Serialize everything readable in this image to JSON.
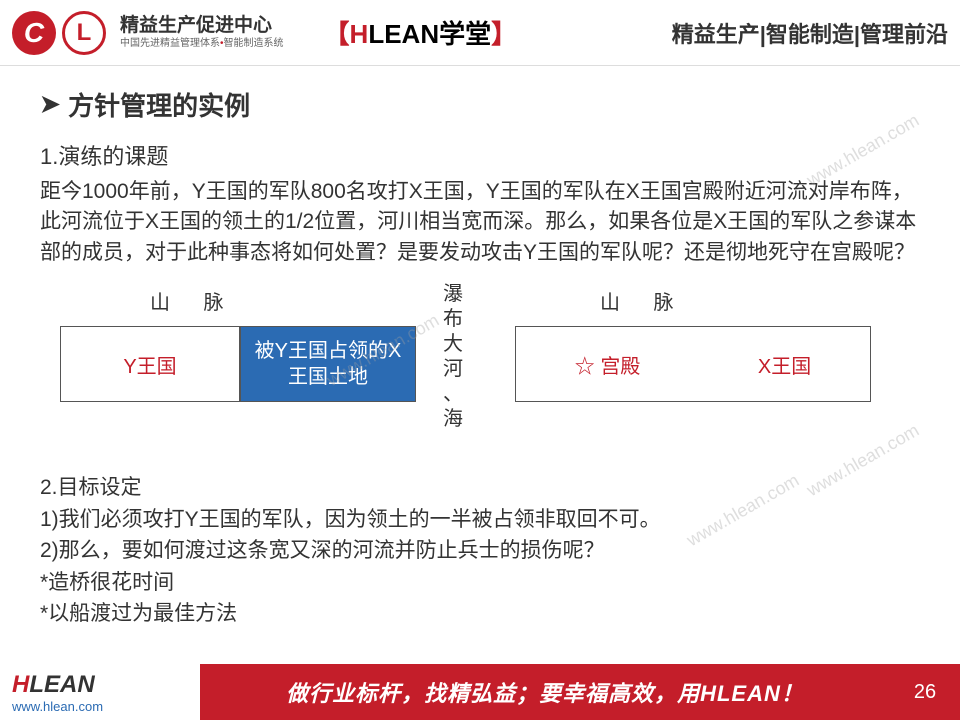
{
  "header": {
    "logo_c": "C",
    "logo_l": "L",
    "logo_main": "精益生产促进中心",
    "logo_sub_a": "中国先进精益管理体系",
    "logo_sub_b": "智能制造系统",
    "center_bracket_l": "【",
    "center_h": "H",
    "center_lean": "LEAN",
    "center_school": "学堂",
    "center_bracket_r": "】",
    "right": "精益生产|智能制造|管理前沿"
  },
  "title": {
    "arrow": "➤",
    "text": "方针管理的实例"
  },
  "section1": {
    "label": "1.演练的课题",
    "body": "距今1000年前，Y王国的军队800名攻打X王国，Y王国的军队在X王国宫殿附近河流对岸布阵，此河流位于X王国的领土的1/2位置，河川相当宽而深。那么，如果各位是X王国的军队之参谋本部的成员，对于此种事态将如何处置？是要发动攻击Y王国的军队呢？还是彻地死守在宫殿呢？"
  },
  "diagram": {
    "mountain": "山 脉",
    "center_vertical": "瀑布 大河 、海",
    "box_y": "Y王国",
    "box_occupied": "被Y王国占领的X王国土地",
    "palace": "☆ 宫殿",
    "box_x": "X王国",
    "colors": {
      "occupied_bg": "#2b6bb3",
      "accent_red": "#c41e2a",
      "border": "#555555"
    }
  },
  "section2": {
    "label": "2.目标设定",
    "line1": "1)我们必须攻打Y王国的军队，因为领土的一半被占领非取回不可。",
    "line2": "2)那么，要如何渡过这条宽又深的河流并防止兵士的损伤呢？",
    "note1": "*造桥很花时间",
    "note2": "*以船渡过为最佳方法"
  },
  "footer": {
    "logo_h": "H",
    "logo_lean": "LEAN",
    "url": "www.hlean.com",
    "slogan": "做行业标杆，找精弘益；要幸福高效，用HLEAN！",
    "page": "26"
  },
  "watermark": "www.hlean.com"
}
